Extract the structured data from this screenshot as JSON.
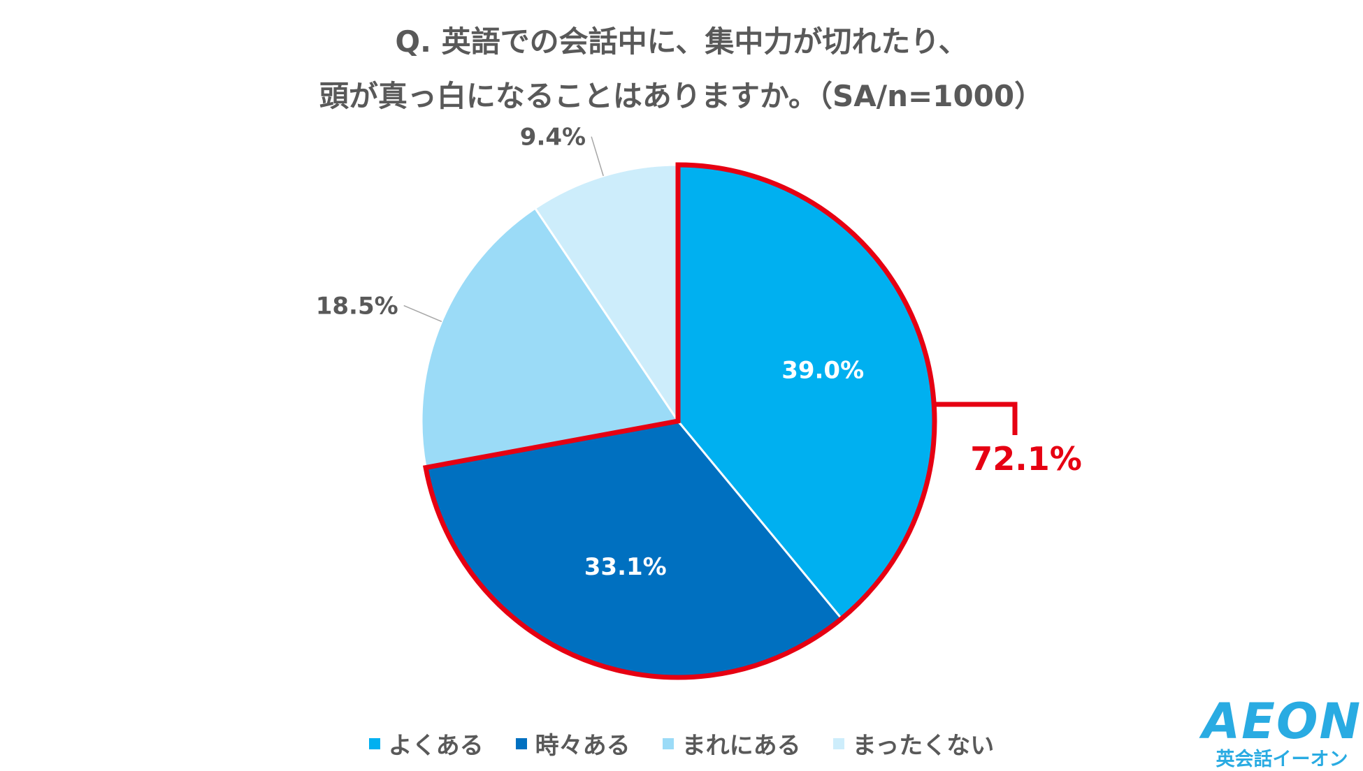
{
  "title": {
    "line1": "Q. 英語での会話中に、集中力が切れたり、",
    "line2": "頭が真っ白になることはありますか。（SA/n=1000）"
  },
  "chart_data": {
    "type": "pie",
    "slices": [
      {
        "label": "よくある",
        "value": 39.0,
        "display": "39.0%",
        "color": "#00b0f0"
      },
      {
        "label": "時々ある",
        "value": 33.1,
        "display": "33.1%",
        "color": "#0070c0"
      },
      {
        "label": "まれにある",
        "value": 18.5,
        "display": "18.5%",
        "color": "#9bdbf7"
      },
      {
        "label": "まったくない",
        "value": 9.4,
        "display": "9.4%",
        "color": "#cdedfb"
      }
    ],
    "highlight": {
      "label": "72.1%",
      "color": "#e60012"
    },
    "legend_position": "bottom"
  },
  "logo": {
    "main": "AEON",
    "sub": "英会話イーオン"
  }
}
